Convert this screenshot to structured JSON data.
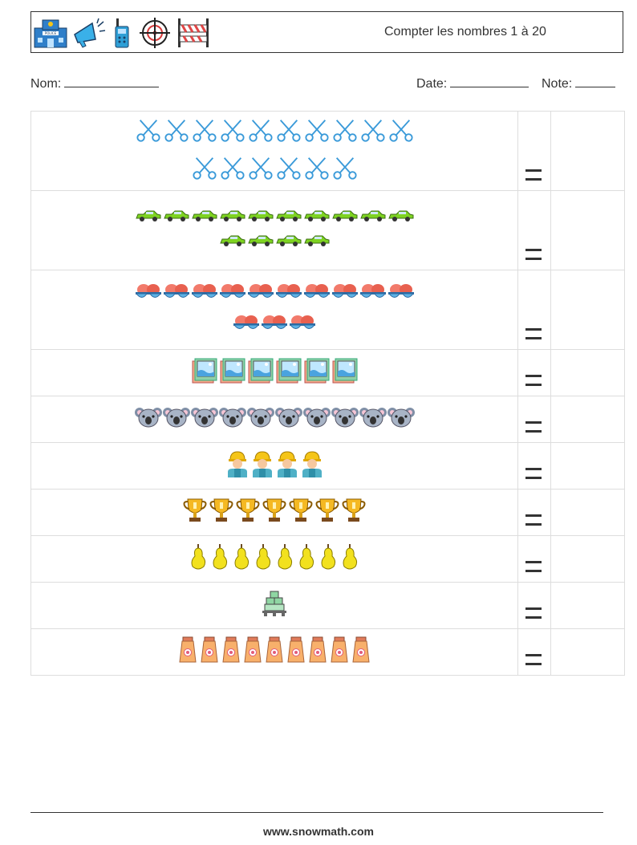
{
  "header": {
    "title": "Compter les nombres 1 à 20",
    "icons": [
      "police-station-icon",
      "megaphone-icon",
      "walkie-talkie-icon",
      "crosshair-icon",
      "road-barrier-icon"
    ]
  },
  "info": {
    "name_label": "Nom:",
    "date_label": "Date:",
    "score_label": "Note:"
  },
  "problems": [
    {
      "icon": "scissors",
      "rows": [
        10,
        6
      ]
    },
    {
      "icon": "car",
      "rows": [
        10,
        4
      ]
    },
    {
      "icon": "sunglasses",
      "rows": [
        10,
        3
      ]
    },
    {
      "icon": "photo-frame",
      "rows": [
        6
      ]
    },
    {
      "icon": "koala",
      "rows": [
        10
      ]
    },
    {
      "icon": "worker",
      "rows": [
        4
      ]
    },
    {
      "icon": "trophy",
      "rows": [
        7
      ]
    },
    {
      "icon": "pear",
      "rows": [
        8
      ]
    },
    {
      "icon": "pallet",
      "rows": [
        1
      ]
    },
    {
      "icon": "lotion-tube",
      "rows": [
        9
      ]
    }
  ],
  "equals_sign": "=",
  "footer": {
    "url": "www.snowmath.com"
  }
}
